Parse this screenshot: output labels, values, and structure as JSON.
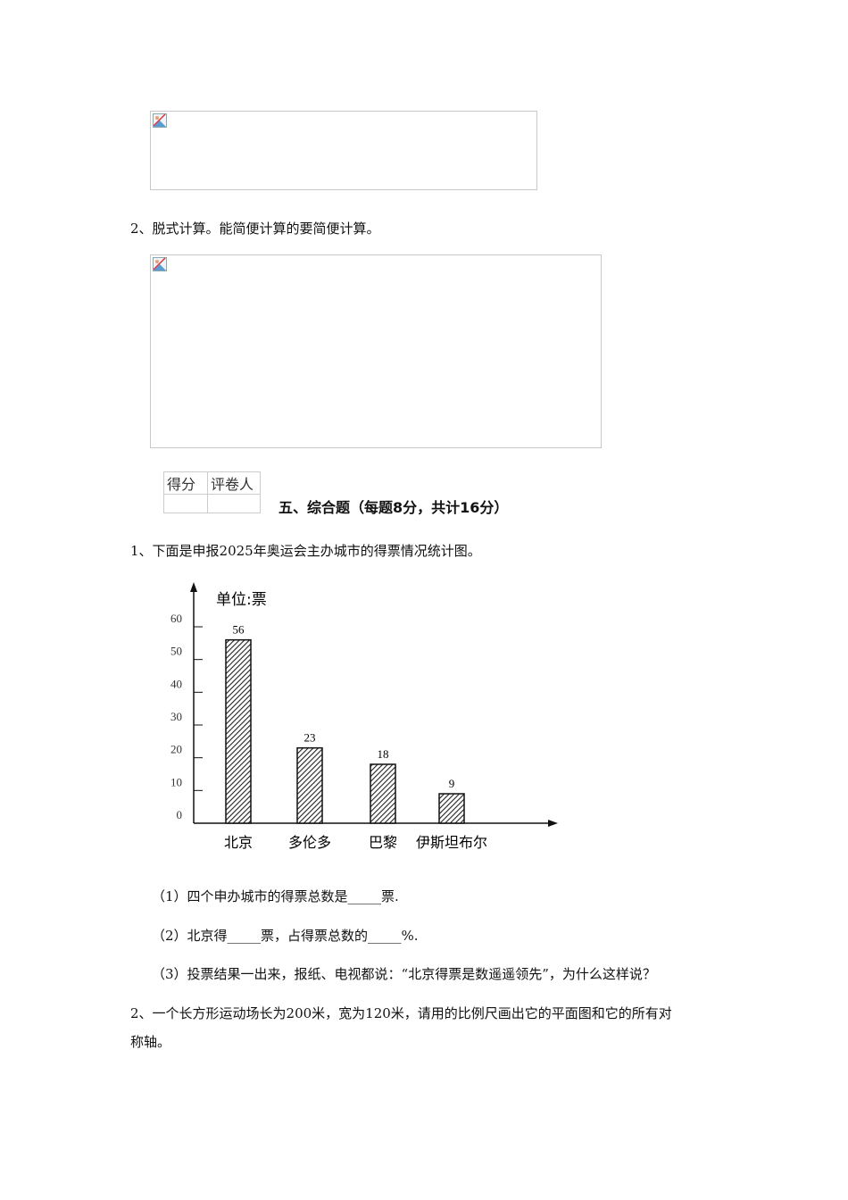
{
  "q2_title": "2、脱式计算。能简便计算的要简便计算。",
  "score_table": {
    "headers": [
      "得分",
      "评卷人"
    ]
  },
  "section_title": "五、综合题（每题8分，共计16分）",
  "q1": {
    "title": "1、下面是申报2025年奥运会主办城市的得票情况统计图。",
    "sub1": "（1）四个申办城市的得票总数是_____票.",
    "sub2": "（2）北京得_____票，占得票总数的_____%.",
    "sub3": "（3）投票结果一出来，报纸、电视都说：“北京得票是数遥遥领先”，为什么这样说？"
  },
  "q2b": {
    "line1": "2、一个长方形运动场长为200米，宽为120米，请用的比例尺画出它的平面图和它的所有对",
    "line2": "称轴。"
  },
  "chart_data": {
    "type": "bar",
    "unit_label": "单位:票",
    "categories": [
      "北京",
      "多伦多",
      "巴黎",
      "伊斯坦布尔"
    ],
    "values": [
      56,
      23,
      18,
      9
    ],
    "data_labels": [
      "56",
      "23",
      "18",
      "9"
    ],
    "yticks": [
      "0",
      "10",
      "20",
      "30",
      "40",
      "50",
      "60"
    ],
    "ylim": [
      0,
      60
    ],
    "bar_fill": "hatched",
    "grid": false
  }
}
